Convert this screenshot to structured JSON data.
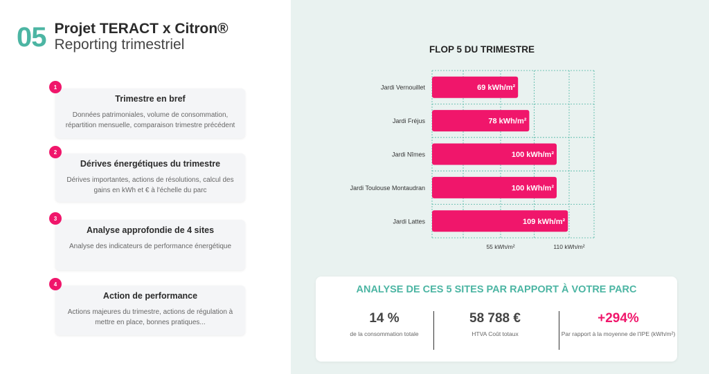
{
  "header": {
    "number": "05",
    "title": "Projet TERACT x Citron®",
    "subtitle": "Reporting trimestriel"
  },
  "cards": [
    {
      "badge": "1",
      "title": "Trimestre en bref",
      "desc": "Données patrimoniales, volume de consommation, répartition mensuelle, comparaison trimestre précédent"
    },
    {
      "badge": "2",
      "title": "Dérives énergétiques du trimestre",
      "desc": "Dérives importantes, actions de résolutions, calcul des gains en kWh et € à l'échelle du parc"
    },
    {
      "badge": "3",
      "title": "Analyse approfondie de 4 sites",
      "desc": "Analyse des indicateurs de performance énergétique"
    },
    {
      "badge": "4",
      "title": "Action de performance",
      "desc": "Actions majeures du trimestre, actions de régulation à mettre en place, bonnes pratiques..."
    }
  ],
  "chart_title": "FLOP 5 DU TRIMESTRE",
  "chart_data": {
    "type": "bar",
    "orientation": "horizontal",
    "categories": [
      "Jardi Vernouillet",
      "Jardi Fréjus",
      "Jardi Nîmes",
      "Jardi Toulouse Montaudran",
      "Jardi Lattes"
    ],
    "values": [
      69,
      78,
      100,
      100,
      109
    ],
    "value_labels": [
      "69 kWh/m²",
      "78 kWh/m²",
      "100 kWh/m²",
      "100 kWh/m²",
      "109 kWh/m²"
    ],
    "xticks": [
      55,
      110
    ],
    "xtick_labels": [
      "55 kWh/m²",
      "110 kWh/m²"
    ],
    "xlim": [
      0,
      130
    ],
    "grid": true,
    "bar_color": "#f0166b",
    "grid_color": "#4cb5a3"
  },
  "panel": {
    "title": "ANALYSE DE CES 5 SITES PAR RAPPORT À VOTRE PARC",
    "stats": [
      {
        "value": "14 %",
        "label": "de la consommation totale"
      },
      {
        "value": "58 788 €",
        "label": "HTVA Coût totaux"
      },
      {
        "value": "+294%",
        "label": "Par rapport à la moyenne de l'IPE (kWh/m²)"
      }
    ]
  },
  "colors": {
    "accent": "#4cb5a3",
    "pink": "#f0166b",
    "right_bg": "#e9f2f0"
  }
}
